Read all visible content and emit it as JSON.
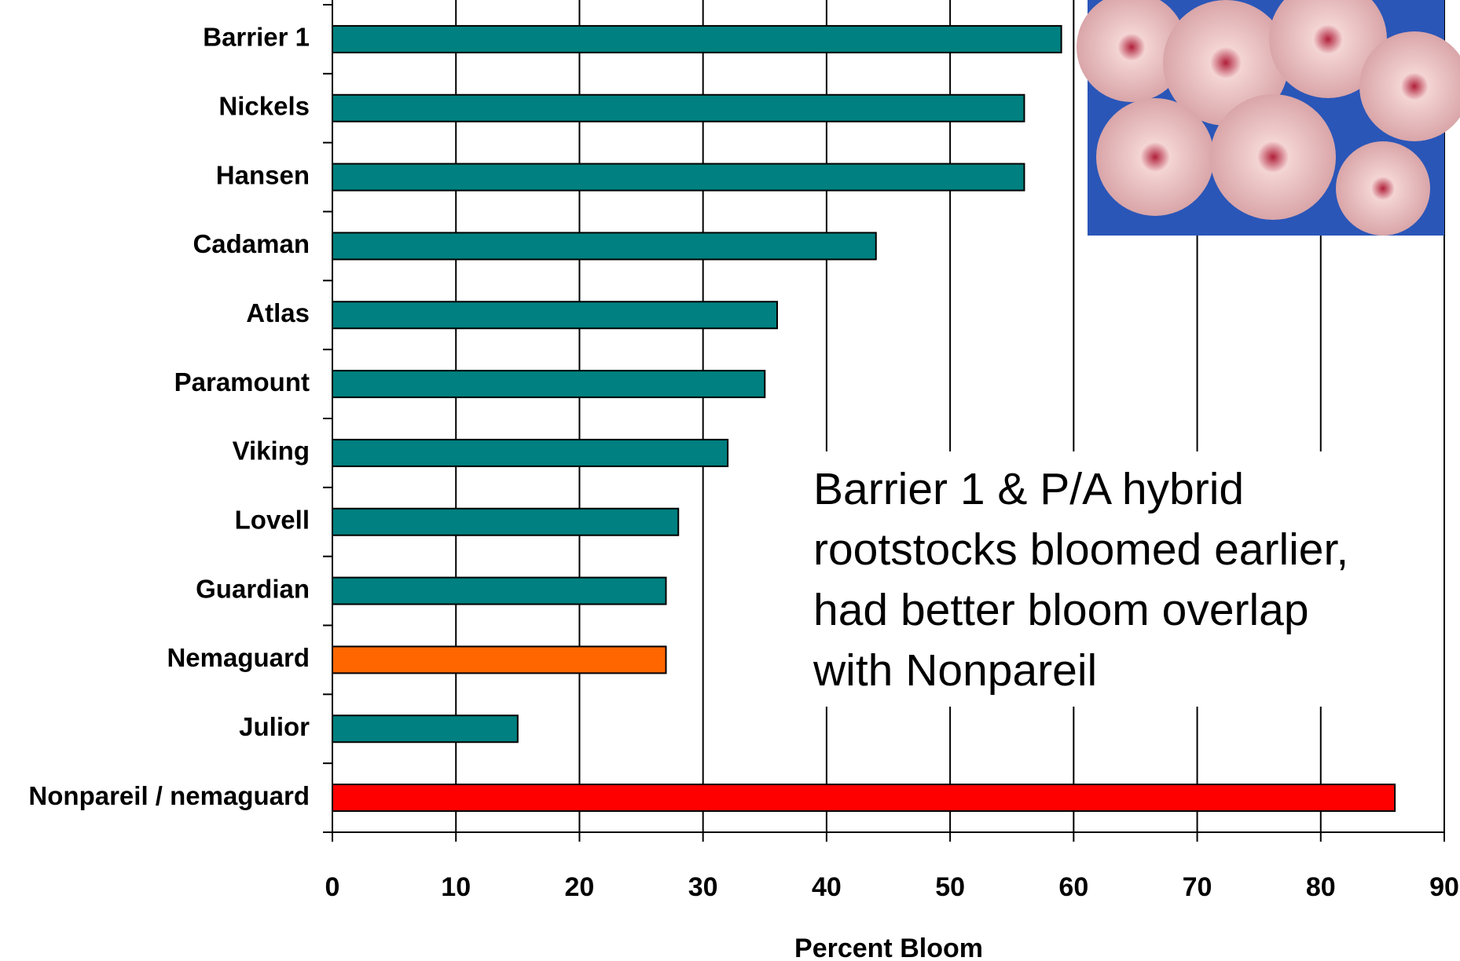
{
  "chart_data": {
    "type": "bar",
    "orientation": "horizontal",
    "categories": [
      "Barrier 1",
      "Nickels",
      "Hansen",
      "Cadaman",
      "Atlas",
      "Paramount",
      "Viking",
      "Lovell",
      "Guardian",
      "Nemaguard",
      "Julior",
      "Nonpareil / nemaguard"
    ],
    "values": [
      59,
      56,
      56,
      44,
      36,
      35,
      32,
      28,
      27,
      27,
      15,
      86
    ],
    "colors": [
      "#008080",
      "#008080",
      "#008080",
      "#008080",
      "#008080",
      "#008080",
      "#008080",
      "#008080",
      "#008080",
      "#ff6600",
      "#008080",
      "#ff0000"
    ],
    "xlim": [
      0,
      90
    ],
    "xticks": [
      0,
      10,
      20,
      30,
      40,
      50,
      60,
      70,
      80,
      90
    ],
    "xlabel": "Percent Bloom",
    "grid": true,
    "annotation": [
      "Barrier 1 & P/A hybrid",
      "rootstocks bloomed earlier,",
      "had better bloom overlap",
      "with Nonpareil"
    ]
  }
}
